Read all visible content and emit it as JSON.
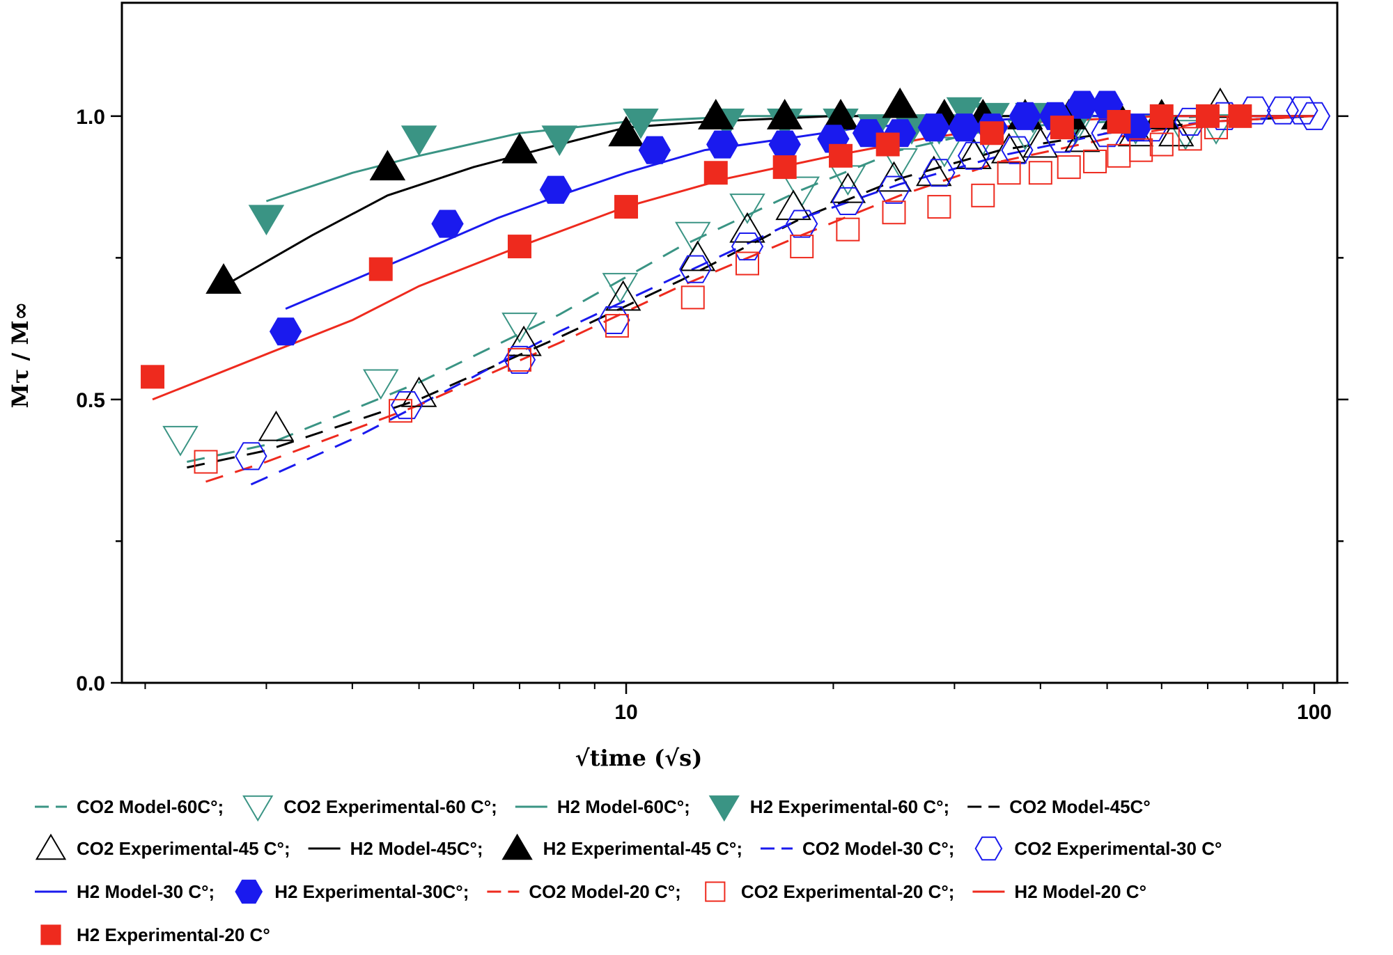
{
  "chart_data": {
    "type": "scatter",
    "title": "",
    "xscale": "log",
    "xlim": [
      1.85,
      108
    ],
    "ylim": [
      0,
      1.2
    ],
    "xlabel": "√time (√s)",
    "ylabel": "Mτ / M∞",
    "x_ticks": [
      10,
      100
    ],
    "x_tick_labels": [
      "10",
      "100"
    ],
    "y_ticks": [
      0.0,
      0.5,
      1.0
    ],
    "y_tick_labels": [
      "0.0",
      "0.5",
      "1.0"
    ],
    "colors": {
      "teal": "#3a9484",
      "black": "#000000",
      "blue": "#1a1aee",
      "red": "#ee2a1e"
    },
    "series": [
      {
        "name": "CO2 Model-60C°",
        "kind": "line",
        "dash": true,
        "color": "#3a9484",
        "x": [
          2.3,
          3,
          5,
          8,
          12,
          18,
          25,
          35,
          50,
          70,
          100
        ],
        "y": [
          0.39,
          0.42,
          0.53,
          0.65,
          0.77,
          0.87,
          0.94,
          0.98,
          0.99,
          1.0,
          1.0
        ]
      },
      {
        "name": "CO2 Experimental-60 C°",
        "kind": "marker",
        "marker": "tri-down-open",
        "color": "#3a9484",
        "x": [
          2.25,
          4.4,
          7,
          9.8,
          12.5,
          15,
          18,
          21,
          25,
          29,
          33,
          38,
          45,
          55,
          65,
          72
        ],
        "y": [
          0.43,
          0.53,
          0.63,
          0.7,
          0.79,
          0.84,
          0.87,
          0.89,
          0.92,
          0.94,
          0.96,
          0.97,
          0.98,
          0.98,
          0.97,
          0.98
        ]
      },
      {
        "name": "H2 Model-60C°",
        "kind": "line",
        "dash": false,
        "color": "#3a9484",
        "x": [
          3,
          4,
          5,
          7,
          10,
          15,
          20,
          30,
          50,
          100
        ],
        "y": [
          0.85,
          0.9,
          0.93,
          0.97,
          0.99,
          1.0,
          1.0,
          1.0,
          1.0,
          1.0
        ]
      },
      {
        "name": "H2 Experimental-60 C°",
        "kind": "marker",
        "marker": "tri-down-filled",
        "color": "#3a9484",
        "x": [
          3,
          5,
          8,
          10.5,
          14,
          17,
          20.5,
          23,
          26,
          28.5,
          31,
          34,
          39,
          45
        ],
        "y": [
          0.82,
          0.96,
          0.96,
          0.99,
          0.99,
          0.99,
          0.99,
          0.98,
          0.98,
          0.98,
          1.01,
          1.0,
          1.0,
          0.99
        ]
      },
      {
        "name": "CO2 Model-45C°",
        "kind": "line",
        "dash": true,
        "color": "#000000",
        "x": [
          2.3,
          3,
          5,
          8,
          12,
          18,
          25,
          35,
          50,
          70,
          100
        ],
        "y": [
          0.38,
          0.41,
          0.5,
          0.61,
          0.71,
          0.82,
          0.89,
          0.94,
          0.97,
          0.99,
          1.0
        ]
      },
      {
        "name": "CO2 Experimental-45 C°",
        "kind": "marker",
        "marker": "tri-up-open",
        "color": "#000000",
        "x": [
          3.1,
          5,
          7.1,
          9.9,
          12.7,
          15,
          17.5,
          21,
          24.5,
          28,
          32,
          36,
          40,
          46,
          55,
          63,
          73
        ],
        "y": [
          0.45,
          0.51,
          0.6,
          0.68,
          0.75,
          0.8,
          0.84,
          0.87,
          0.89,
          0.9,
          0.93,
          0.94,
          0.95,
          0.96,
          0.97,
          0.97,
          1.02
        ]
      },
      {
        "name": "H2 Model-45C°",
        "kind": "line",
        "dash": false,
        "color": "#000000",
        "x": [
          2.6,
          3.5,
          4.5,
          6,
          8,
          10,
          13,
          20,
          40,
          100
        ],
        "y": [
          0.7,
          0.79,
          0.86,
          0.91,
          0.95,
          0.98,
          0.99,
          1.0,
          1.0,
          1.0
        ]
      },
      {
        "name": "H2 Experimental-45 C°",
        "kind": "marker",
        "marker": "tri-up-filled",
        "color": "#000000",
        "x": [
          2.6,
          4.5,
          7,
          10,
          13.5,
          17,
          20.5,
          25,
          29,
          33,
          38,
          44,
          52,
          60
        ],
        "y": [
          0.71,
          0.91,
          0.94,
          0.97,
          1.0,
          1.0,
          1.0,
          1.02,
          1.0,
          1.0,
          1.0,
          1.0,
          1.0,
          1.0
        ]
      },
      {
        "name": "CO2 Model-30 C°",
        "kind": "line",
        "dash": true,
        "color": "#1a1aee",
        "x": [
          2.85,
          4,
          6,
          8,
          12,
          18,
          25,
          35,
          50,
          70,
          100
        ],
        "y": [
          0.35,
          0.43,
          0.54,
          0.62,
          0.72,
          0.82,
          0.88,
          0.93,
          0.97,
          0.99,
          1.0
        ]
      },
      {
        "name": "CO2 Experimental-30 C°",
        "kind": "marker",
        "marker": "hex-open",
        "color": "#1a1aee",
        "x": [
          2.85,
          4.8,
          7,
          9.6,
          12.6,
          15,
          18,
          21,
          24.5,
          28.5,
          32,
          37,
          43,
          50,
          58,
          66,
          74,
          82,
          90,
          96,
          100
        ],
        "y": [
          0.4,
          0.49,
          0.57,
          0.64,
          0.73,
          0.77,
          0.81,
          0.85,
          0.87,
          0.9,
          0.93,
          0.94,
          0.96,
          0.97,
          0.98,
          0.99,
          1.0,
          1.01,
          1.01,
          1.01,
          1.0
        ]
      },
      {
        "name": "H2 Model-30 C°",
        "kind": "line",
        "dash": false,
        "color": "#1a1aee",
        "x": [
          3.2,
          4,
          5,
          6.5,
          8,
          10,
          13,
          17,
          22,
          30,
          45,
          70,
          100
        ],
        "y": [
          0.66,
          0.71,
          0.76,
          0.82,
          0.86,
          0.9,
          0.94,
          0.96,
          0.98,
          0.99,
          1.0,
          1.0,
          1.0
        ]
      },
      {
        "name": "H2 Experimental-30C°",
        "kind": "marker",
        "marker": "hex-filled",
        "color": "#1a1aee",
        "x": [
          3.2,
          5.5,
          7.9,
          11,
          13.8,
          17,
          20,
          22.5,
          25,
          28,
          31,
          34,
          38,
          42,
          46,
          50,
          55
        ],
        "y": [
          0.62,
          0.81,
          0.87,
          0.94,
          0.95,
          0.95,
          0.96,
          0.97,
          0.97,
          0.98,
          0.98,
          0.98,
          1.0,
          1.0,
          1.02,
          1.02,
          0.98
        ]
      },
      {
        "name": "CO2 Model-20 C°",
        "kind": "line",
        "dash": true,
        "color": "#ee2a1e",
        "x": [
          2.45,
          3,
          5,
          8,
          12,
          18,
          25,
          35,
          50,
          70,
          100
        ],
        "y": [
          0.355,
          0.39,
          0.49,
          0.6,
          0.7,
          0.79,
          0.86,
          0.92,
          0.96,
          0.99,
          1.0
        ]
      },
      {
        "name": "CO2 Experimental-20 C°",
        "kind": "marker",
        "marker": "square-open",
        "color": "#ee2a1e",
        "x": [
          2.45,
          4.7,
          7,
          9.7,
          12.5,
          15,
          18,
          21,
          24.5,
          28.5,
          33,
          36,
          40,
          44,
          48,
          52,
          56,
          60,
          66,
          72
        ],
        "y": [
          0.39,
          0.48,
          0.57,
          0.63,
          0.68,
          0.74,
          0.77,
          0.8,
          0.83,
          0.84,
          0.86,
          0.9,
          0.9,
          0.91,
          0.92,
          0.93,
          0.94,
          0.95,
          0.96,
          0.98
        ]
      },
      {
        "name": "H2 Model-20 C°",
        "kind": "line",
        "dash": false,
        "color": "#ee2a1e",
        "x": [
          2.05,
          3,
          4,
          5,
          7,
          10,
          14,
          20,
          27,
          40,
          60,
          100
        ],
        "y": [
          0.5,
          0.58,
          0.64,
          0.7,
          0.77,
          0.84,
          0.89,
          0.93,
          0.96,
          0.99,
          1.0,
          1.0
        ]
      },
      {
        "name": "H2 Experimental-20 C°",
        "kind": "marker",
        "marker": "square-filled",
        "color": "#ee2a1e",
        "x": [
          2.05,
          4.4,
          7,
          10,
          13.5,
          17,
          20.5,
          24,
          34,
          43,
          52,
          60,
          70,
          78
        ],
        "y": [
          0.54,
          0.73,
          0.77,
          0.84,
          0.9,
          0.91,
          0.93,
          0.95,
          0.97,
          0.98,
          0.99,
          1.0,
          1.0,
          1.0
        ]
      }
    ],
    "legend": [
      {
        "line": 0,
        "sym": "dash",
        "color": "#3a9484",
        "label": "CO2 Model-60C°;"
      },
      {
        "line": 0,
        "sym": "tri-down-open",
        "color": "#3a9484",
        "label": "CO2 Experimental-60 C°;"
      },
      {
        "line": 0,
        "sym": "solid",
        "color": "#3a9484",
        "label": "H2 Model-60C°;"
      },
      {
        "line": 0,
        "sym": "tri-down-filled",
        "color": "#3a9484",
        "label": "H2 Experimental-60 C°;"
      },
      {
        "line": 0,
        "sym": "dash",
        "color": "#000000",
        "label": "CO2 Model-45C°"
      },
      {
        "line": 1,
        "sym": "tri-up-open",
        "color": "#000000",
        "label": "CO2 Experimental-45 C°;"
      },
      {
        "line": 1,
        "sym": "solid",
        "color": "#000000",
        "label": "H2 Model-45C°;"
      },
      {
        "line": 1,
        "sym": "tri-up-filled",
        "color": "#000000",
        "label": "H2 Experimental-45 C°;"
      },
      {
        "line": 1,
        "sym": "dash",
        "color": "#1a1aee",
        "label": "CO2 Model-30 C°;"
      },
      {
        "line": 1,
        "sym": "hex-open",
        "color": "#1a1aee",
        "label": "CO2 Experimental-30 C°"
      },
      {
        "line": 2,
        "sym": "solid",
        "color": "#1a1aee",
        "label": "H2 Model-30 C°;"
      },
      {
        "line": 2,
        "sym": "hex-filled",
        "color": "#1a1aee",
        "label": "H2 Experimental-30C°;"
      },
      {
        "line": 2,
        "sym": "dash",
        "color": "#ee2a1e",
        "label": "CO2 Model-20 C°;"
      },
      {
        "line": 2,
        "sym": "square-open",
        "color": "#ee2a1e",
        "label": "CO2 Experimental-20 C°;"
      },
      {
        "line": 2,
        "sym": "solid",
        "color": "#ee2a1e",
        "label": "H2 Model-20 C°"
      },
      {
        "line": 3,
        "sym": "square-filled",
        "color": "#ee2a1e",
        "label": "H2 Experimental-20 C°"
      }
    ]
  }
}
